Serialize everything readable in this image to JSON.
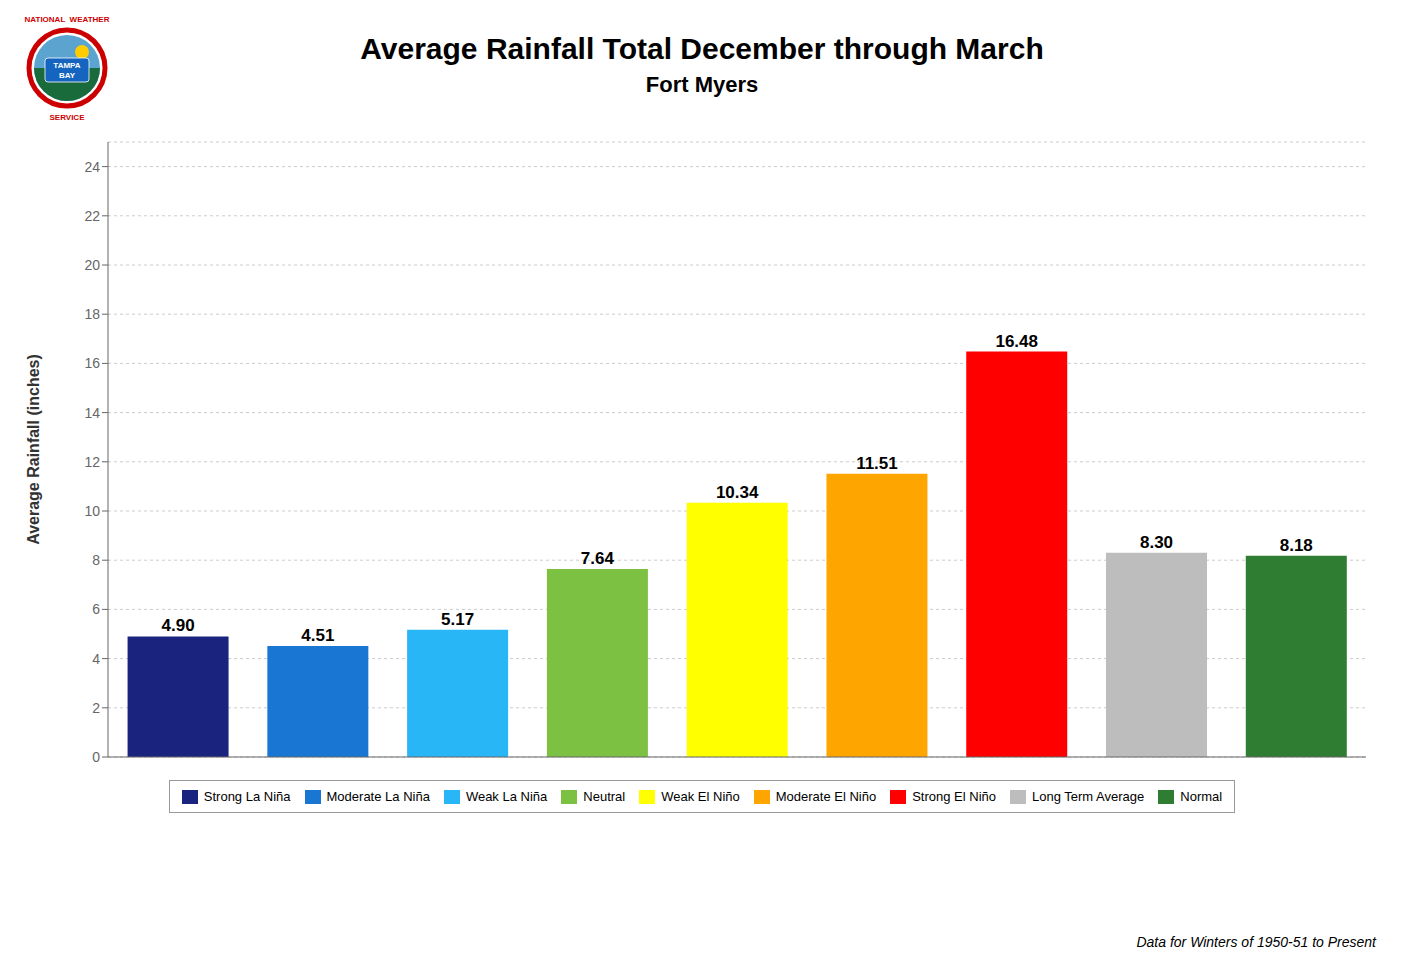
{
  "chart_data": {
    "type": "bar",
    "title": "Average Rainfall Total December through March",
    "subtitle": "Fort Myers",
    "ylabel": "Average Rainfall (inches)",
    "footer": "Data for Winters of 1950-51 to Present",
    "annotations": [
      "NATIONAL  WEATHER",
      "TAMPA",
      "BAY",
      "SERVICE"
    ],
    "categories": [
      "Strong La Niña",
      "Moderate La Niña",
      "Weak La Niña",
      "Neutral",
      "Weak El Niño",
      "Moderate El Niño",
      "Strong El Niño",
      "Long Term Average",
      "Normal"
    ],
    "values": [
      4.9,
      4.51,
      5.17,
      7.64,
      10.34,
      11.51,
      16.48,
      8.3,
      8.18
    ],
    "value_labels": [
      "4.90",
      "4.51",
      "5.17",
      "7.64",
      "10.34",
      "11.51",
      "16.48",
      "8.30",
      "8.18"
    ],
    "data_labels": true,
    "colors": [
      "#1a237e",
      "#1976d2",
      "#29b6f6",
      "#7dc142",
      "#ffff00",
      "#ffa500",
      "#ff0000",
      "#bdbdbd",
      "#2e7d32"
    ],
    "ylim": [
      0,
      25
    ],
    "yticks": [
      0,
      2,
      4,
      6,
      8,
      10,
      12,
      14,
      16,
      18,
      20,
      22,
      24
    ],
    "grid": true,
    "legend": "bottom",
    "tick_labels": "y"
  }
}
